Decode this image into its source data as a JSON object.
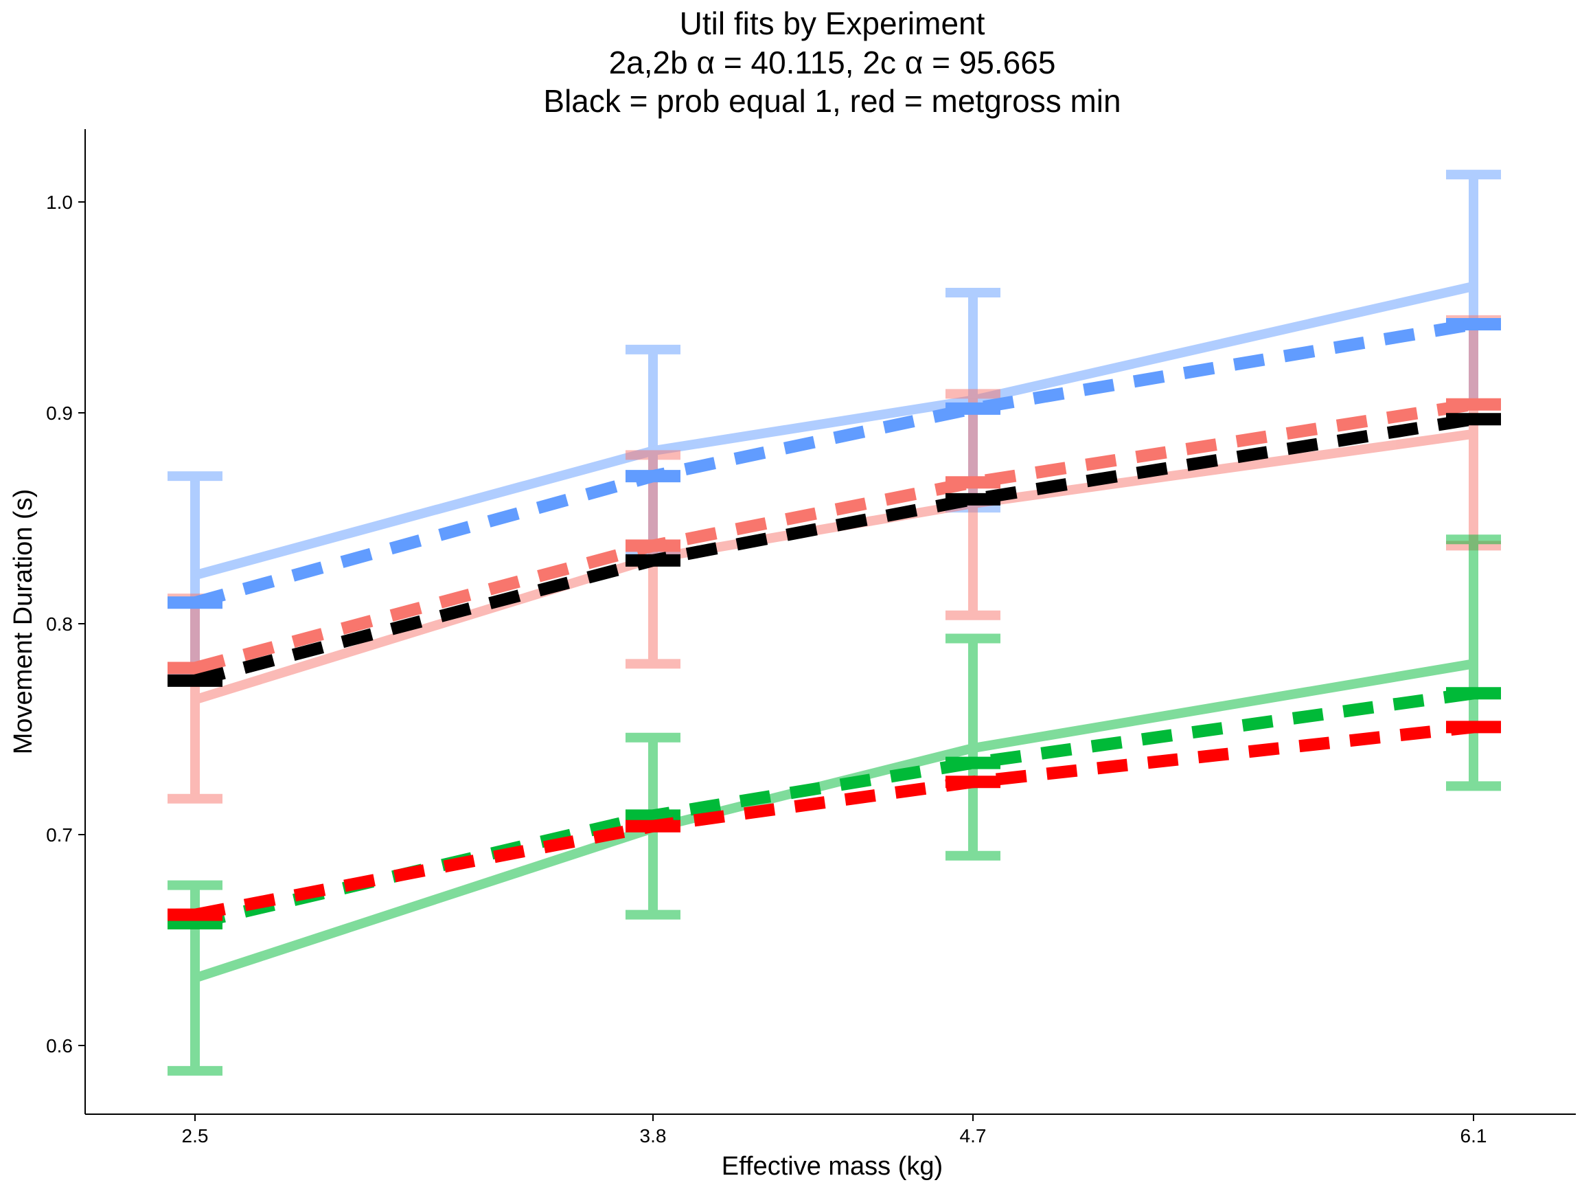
{
  "chart_data": {
    "type": "line",
    "title_lines": [
      "Util fits by Experiment",
      "2a,2b α = 40.115, 2c α = 95.665",
      "Black = prob equal 1, red = metgross min"
    ],
    "xlabel": "Effective mass (kg)",
    "ylabel": "Movement Duration (s)",
    "categories": [
      "2.5",
      "3.8",
      "4.7",
      "6.1"
    ],
    "ylim": [
      0.565,
      1.035
    ],
    "yticks": [
      0.6,
      0.7,
      0.8,
      0.9,
      1.0
    ],
    "ytick_labels": [
      "0.6",
      "0.7",
      "0.8",
      "0.9",
      "1.0"
    ],
    "grid": false,
    "legend": "none",
    "observed": [
      {
        "color": "#619CFF",
        "values": [
          0.823,
          0.882,
          0.906,
          0.96
        ],
        "error_low": [
          0.776,
          0.834,
          0.855,
          0.904
        ],
        "error_high": [
          0.87,
          0.93,
          0.957,
          1.013
        ]
      },
      {
        "color": "#F8766D",
        "values": [
          0.764,
          0.831,
          0.857,
          0.89
        ],
        "error_low": [
          0.717,
          0.781,
          0.804,
          0.837
        ],
        "error_high": [
          0.812,
          0.88,
          0.909,
          0.944
        ]
      },
      {
        "color": "#00BA38",
        "values": [
          0.632,
          0.703,
          0.741,
          0.781
        ],
        "error_low": [
          0.588,
          0.662,
          0.69,
          0.723
        ],
        "error_high": [
          0.676,
          0.746,
          0.793,
          0.84
        ]
      }
    ],
    "fits": [
      {
        "color": "#619CFF",
        "values": [
          0.81,
          0.87,
          0.902,
          0.942
        ]
      },
      {
        "color": "#F8766D",
        "values": [
          0.779,
          0.837,
          0.867,
          0.904
        ]
      },
      {
        "color": "#000000",
        "values": [
          0.773,
          0.83,
          0.859,
          0.897
        ]
      },
      {
        "color": "#00BA38",
        "values": [
          0.658,
          0.709,
          0.734,
          0.767
        ]
      },
      {
        "color": "#FF0000",
        "values": [
          0.662,
          0.704,
          0.725,
          0.751
        ]
      }
    ]
  }
}
